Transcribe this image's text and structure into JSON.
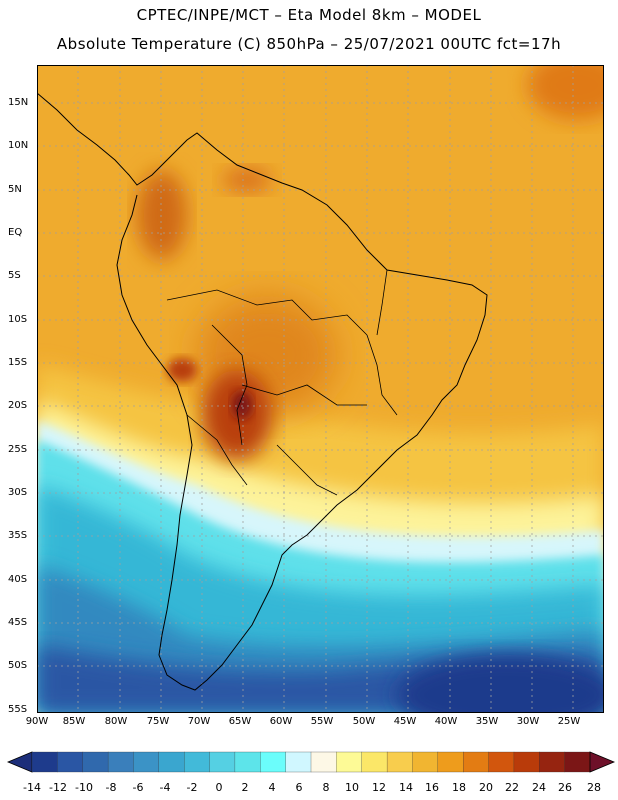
{
  "header": {
    "title_line1": "CPTEC/INPE/MCT –  Eta Model 8km – MODEL",
    "title_line2": "Absolute Temperature (C) 850hPa – 25/07/2021 00UTC fct=17h"
  },
  "map": {
    "lat_labels": [
      "15N",
      "10N",
      "5N",
      "EQ",
      "5S",
      "10S",
      "15S",
      "20S",
      "25S",
      "30S",
      "35S",
      "40S",
      "45S",
      "50S",
      "55S"
    ],
    "lon_labels": [
      "90W",
      "85W",
      "80W",
      "75W",
      "70W",
      "65W",
      "60W",
      "55W",
      "50W",
      "45W",
      "40W",
      "35W",
      "30W",
      "25W"
    ],
    "background_color": "#efab2e",
    "cold_sea_color": "#34bfd8",
    "deep_cold_color": "#21489a",
    "hot_core_color": "#8c1a1a"
  },
  "colorbar": {
    "labels": [
      "-14",
      "-12",
      "-10",
      "-8",
      "-6",
      "-4",
      "-2",
      "0",
      "2",
      "4",
      "6",
      "8",
      "10",
      "12",
      "14",
      "16",
      "18",
      "20",
      "22",
      "24",
      "26",
      "28"
    ],
    "colors": [
      "#1e3b8c",
      "#2a56a4",
      "#3069ad",
      "#3a7fbb",
      "#3b93c6",
      "#3aa6cf",
      "#42bad9",
      "#55d0e3",
      "#5de4ea",
      "#6bfdfb",
      "#d0f7ff",
      "#fdf8e6",
      "#fdfa96",
      "#fbe768",
      "#f8cd4d",
      "#f1b531",
      "#ee9c1c",
      "#e37c13",
      "#d2560d",
      "#b93b0a",
      "#962410",
      "#7b1616"
    ],
    "left_arrow_color": "#1c2e7a",
    "right_arrow_color": "#6e1029"
  }
}
